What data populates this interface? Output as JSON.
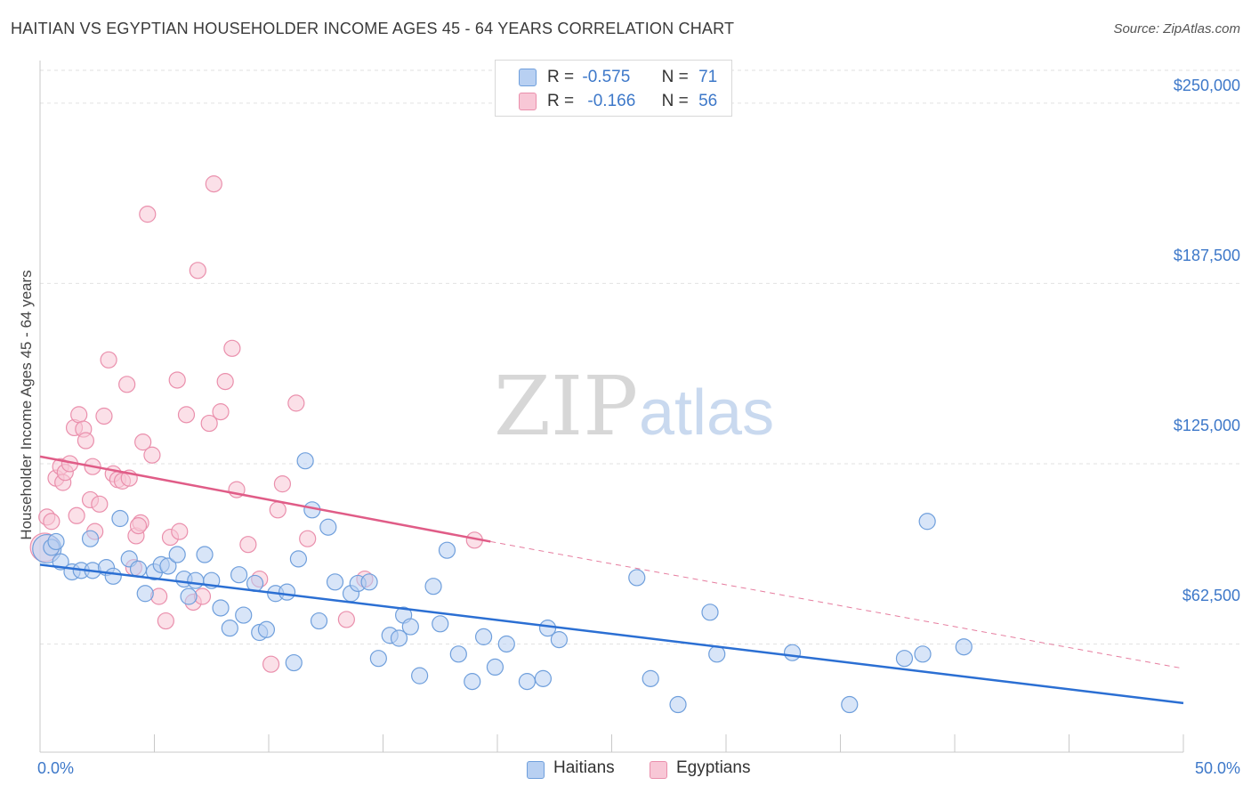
{
  "title": "HAITIAN VS EGYPTIAN HOUSEHOLDER INCOME AGES 45 - 64 YEARS CORRELATION CHART",
  "source": "Source: ZipAtlas.com",
  "colors": {
    "blue_fill": "#b8d0f2",
    "blue_stroke": "#6f9fdc",
    "blue_line": "#2b6fd3",
    "pink_fill": "#f8c7d6",
    "pink_stroke": "#ea8fac",
    "pink_line": "#e05c87",
    "grid": "#e2e2e2",
    "text_blue": "#3d78c9"
  },
  "legend": {
    "r_label": "R =",
    "n_label": "N =",
    "haitians": {
      "r": "-0.575",
      "n": "71"
    },
    "egyptians": {
      "r": "-0.166",
      "n": "56"
    }
  },
  "chart_data": {
    "type": "scatter",
    "title": "HAITIAN VS EGYPTIAN HOUSEHOLDER INCOME AGES 45 - 64 YEARS CORRELATION CHART",
    "ylabel": "Householder Income Ages 45 - 64 years",
    "xlabel": "",
    "xlim": [
      0,
      50
    ],
    "ylim": [
      25000,
      262000
    ],
    "x_tick_labels": [
      "0.0%",
      "50.0%"
    ],
    "y_ticks": [
      62500,
      125000,
      187500,
      250000
    ],
    "y_tick_labels": [
      "$62,500",
      "$125,000",
      "$187,500",
      "$250,000"
    ],
    "grid": "horizontal dashed",
    "legend_position": "top-center",
    "series": [
      {
        "name": "Haitians",
        "color": "#b8d0f2",
        "r": -0.575,
        "n": 71,
        "trend": {
          "x": [
            0,
            50
          ],
          "y": [
            90000,
            42000
          ],
          "style": "solid"
        },
        "points": [
          {
            "x": 0.3,
            "y": 95500,
            "big": true
          },
          {
            "x": 0.5,
            "y": 96000
          },
          {
            "x": 0.7,
            "y": 98000
          },
          {
            "x": 0.9,
            "y": 91000
          },
          {
            "x": 1.4,
            "y": 87500
          },
          {
            "x": 1.8,
            "y": 88000
          },
          {
            "x": 2.2,
            "y": 99000
          },
          {
            "x": 2.3,
            "y": 88000
          },
          {
            "x": 2.9,
            "y": 89000
          },
          {
            "x": 3.2,
            "y": 86000
          },
          {
            "x": 3.5,
            "y": 106000
          },
          {
            "x": 3.9,
            "y": 92000
          },
          {
            "x": 4.3,
            "y": 88500
          },
          {
            "x": 4.6,
            "y": 80000
          },
          {
            "x": 5.0,
            "y": 87500
          },
          {
            "x": 5.3,
            "y": 90000
          },
          {
            "x": 5.6,
            "y": 89500
          },
          {
            "x": 6.0,
            "y": 93500
          },
          {
            "x": 6.3,
            "y": 85000
          },
          {
            "x": 6.5,
            "y": 79000
          },
          {
            "x": 6.8,
            "y": 84500
          },
          {
            "x": 7.2,
            "y": 93500
          },
          {
            "x": 7.5,
            "y": 84500
          },
          {
            "x": 7.9,
            "y": 75000
          },
          {
            "x": 8.3,
            "y": 68000
          },
          {
            "x": 8.7,
            "y": 86500
          },
          {
            "x": 8.9,
            "y": 72500
          },
          {
            "x": 9.4,
            "y": 83500
          },
          {
            "x": 9.6,
            "y": 66500
          },
          {
            "x": 9.9,
            "y": 67500
          },
          {
            "x": 10.3,
            "y": 80000
          },
          {
            "x": 10.8,
            "y": 80500
          },
          {
            "x": 11.1,
            "y": 56000
          },
          {
            "x": 11.3,
            "y": 92000
          },
          {
            "x": 11.6,
            "y": 126000
          },
          {
            "x": 11.9,
            "y": 109000
          },
          {
            "x": 12.2,
            "y": 70500
          },
          {
            "x": 12.6,
            "y": 103000
          },
          {
            "x": 12.9,
            "y": 84000
          },
          {
            "x": 13.6,
            "y": 80000
          },
          {
            "x": 13.9,
            "y": 83500
          },
          {
            "x": 14.4,
            "y": 84000
          },
          {
            "x": 14.8,
            "y": 57500
          },
          {
            "x": 15.3,
            "y": 65500
          },
          {
            "x": 15.7,
            "y": 64500
          },
          {
            "x": 15.9,
            "y": 72500
          },
          {
            "x": 16.2,
            "y": 68500
          },
          {
            "x": 16.6,
            "y": 51500
          },
          {
            "x": 17.2,
            "y": 82500
          },
          {
            "x": 17.5,
            "y": 69500
          },
          {
            "x": 17.8,
            "y": 95000
          },
          {
            "x": 18.3,
            "y": 59000
          },
          {
            "x": 18.9,
            "y": 49500
          },
          {
            "x": 19.4,
            "y": 65000
          },
          {
            "x": 19.9,
            "y": 54500
          },
          {
            "x": 20.4,
            "y": 62500
          },
          {
            "x": 21.3,
            "y": 49500
          },
          {
            "x": 22.0,
            "y": 50500
          },
          {
            "x": 22.2,
            "y": 68000
          },
          {
            "x": 22.7,
            "y": 64000
          },
          {
            "x": 26.1,
            "y": 85500
          },
          {
            "x": 26.7,
            "y": 50500
          },
          {
            "x": 27.9,
            "y": 41500
          },
          {
            "x": 29.3,
            "y": 73500
          },
          {
            "x": 29.6,
            "y": 59000
          },
          {
            "x": 32.9,
            "y": 59500
          },
          {
            "x": 35.4,
            "y": 41500
          },
          {
            "x": 37.8,
            "y": 57500
          },
          {
            "x": 38.6,
            "y": 59000
          },
          {
            "x": 38.8,
            "y": 105000
          },
          {
            "x": 40.4,
            "y": 61500
          }
        ]
      },
      {
        "name": "Egyptians",
        "color": "#f8c7d6",
        "r": -0.166,
        "n": 56,
        "trend": {
          "x": [
            0,
            19.7
          ],
          "y": [
            127500,
            98000
          ],
          "style": "solid",
          "extended": {
            "x": [
              19.7,
              50
            ],
            "y": [
              98000,
              54000
            ],
            "style": "dashed"
          }
        },
        "points": [
          {
            "x": 0.2,
            "y": 96000,
            "big": true
          },
          {
            "x": 0.3,
            "y": 106500
          },
          {
            "x": 0.5,
            "y": 105000
          },
          {
            "x": 0.7,
            "y": 120000
          },
          {
            "x": 0.9,
            "y": 124000
          },
          {
            "x": 1.0,
            "y": 118500
          },
          {
            "x": 1.1,
            "y": 122000
          },
          {
            "x": 1.3,
            "y": 125000
          },
          {
            "x": 1.5,
            "y": 137500
          },
          {
            "x": 1.6,
            "y": 107000
          },
          {
            "x": 1.7,
            "y": 142000
          },
          {
            "x": 1.9,
            "y": 137000
          },
          {
            "x": 2.0,
            "y": 133000
          },
          {
            "x": 2.2,
            "y": 112500
          },
          {
            "x": 2.4,
            "y": 101500
          },
          {
            "x": 2.6,
            "y": 111000
          },
          {
            "x": 2.8,
            "y": 141500
          },
          {
            "x": 3.0,
            "y": 161000
          },
          {
            "x": 3.2,
            "y": 121500
          },
          {
            "x": 3.4,
            "y": 119500
          },
          {
            "x": 3.6,
            "y": 119000
          },
          {
            "x": 3.8,
            "y": 152500
          },
          {
            "x": 3.9,
            "y": 120000
          },
          {
            "x": 4.1,
            "y": 89000
          },
          {
            "x": 4.2,
            "y": 100000
          },
          {
            "x": 4.4,
            "y": 104500
          },
          {
            "x": 4.5,
            "y": 132500
          },
          {
            "x": 4.7,
            "y": 211500
          },
          {
            "x": 4.9,
            "y": 128000
          },
          {
            "x": 5.2,
            "y": 79000
          },
          {
            "x": 5.5,
            "y": 70500
          },
          {
            "x": 5.7,
            "y": 99500
          },
          {
            "x": 6.0,
            "y": 154000
          },
          {
            "x": 6.1,
            "y": 101500
          },
          {
            "x": 6.4,
            "y": 142000
          },
          {
            "x": 6.7,
            "y": 77000
          },
          {
            "x": 6.9,
            "y": 192000
          },
          {
            "x": 7.1,
            "y": 79000
          },
          {
            "x": 7.4,
            "y": 139000
          },
          {
            "x": 7.6,
            "y": 222000
          },
          {
            "x": 7.9,
            "y": 143000
          },
          {
            "x": 8.1,
            "y": 153500
          },
          {
            "x": 8.4,
            "y": 165000
          },
          {
            "x": 8.6,
            "y": 116000
          },
          {
            "x": 9.1,
            "y": 97000
          },
          {
            "x": 9.6,
            "y": 85000
          },
          {
            "x": 10.1,
            "y": 55500
          },
          {
            "x": 10.4,
            "y": 109000
          },
          {
            "x": 10.6,
            "y": 118000
          },
          {
            "x": 11.2,
            "y": 146000
          },
          {
            "x": 11.7,
            "y": 99000
          },
          {
            "x": 13.4,
            "y": 71000
          },
          {
            "x": 14.2,
            "y": 85000
          },
          {
            "x": 19.0,
            "y": 98500
          },
          {
            "x": 4.3,
            "y": 103500
          },
          {
            "x": 2.3,
            "y": 124000
          }
        ]
      }
    ]
  },
  "bottom_legend": {
    "haitians": "Haitians",
    "egyptians": "Egyptians"
  },
  "watermark": {
    "zip": "ZIP",
    "atlas": "atlas"
  }
}
